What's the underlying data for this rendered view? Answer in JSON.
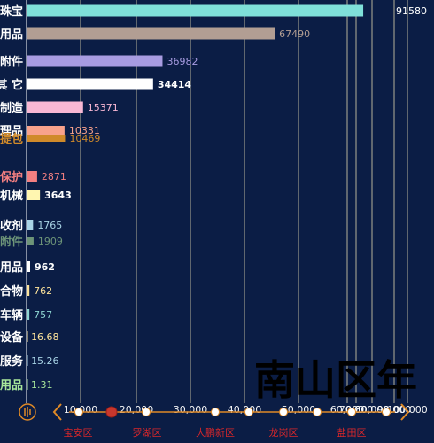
{
  "chart_data": {
    "type": "bar",
    "orientation": "horizontal",
    "categories": [
      "珠宝",
      "用品",
      "附件",
      "其 它",
      "制造",
      "理品",
      "提包",
      "保护",
      "机械",
      "收剂",
      "附件",
      "用品",
      "合物",
      "车辆",
      "设备",
      "服务",
      "用品"
    ],
    "values": [
      91580,
      67490,
      36982,
      34414,
      15371,
      10331,
      10469,
      2871,
      3643,
      1765,
      1909,
      962,
      762,
      757,
      16.68,
      15.26,
      1.31
    ],
    "value_labels": [
      "91580",
      "67490",
      "36982",
      "34414",
      "15371",
      "10331",
      "10469",
      "2871",
      "3643",
      "1765",
      "1909",
      "962",
      "762",
      "757",
      "16.68",
      "15.26",
      "1.31"
    ],
    "colors": [
      "#7fe0d9",
      "#b29e93",
      "#a89ce1",
      "#ffffff",
      "#f9b8d4",
      "#f8a28c",
      "#d08a2a",
      "#f37f81",
      "#fff6b0",
      "#a9d4e6",
      "#6d9478",
      "#ffffff",
      "#fde39b",
      "#8fd7d3",
      "#fde39b",
      "#a9d4e6",
      "#a7e59a"
    ],
    "label_colors": [
      "#ffffff",
      "#ffffff",
      "#ffffff",
      "#ffffff",
      "#ffffff",
      "#ffffff",
      "#d08a2a",
      "#f37f81",
      "#ffffff",
      "#ffffff",
      "#6d9478",
      "#ffffff",
      "#ffffff",
      "#ffffff",
      "#ffffff",
      "#ffffff",
      "#a7e59a"
    ],
    "value_colors": [
      "#ffffff",
      "#b29e93",
      "#a89ce1",
      "#ffffff",
      "#f9b8d4",
      "#f8a28c",
      "#d08a2a",
      "#f37f81",
      "#ffffff",
      "#a9d4e6",
      "#6d9478",
      "#ffffff",
      "#fde39b",
      "#8fd7d3",
      "#fde39b",
      "#a9d4e6",
      "#a7e59a"
    ],
    "x_ticks": [
      "10,000",
      "20,000",
      "30,000",
      "40,000",
      "50,000",
      "60,000",
      "70,000",
      "80,000",
      "90,000",
      "100,000"
    ],
    "xlim": [
      0,
      100000
    ],
    "grid": true,
    "watermark": "南山区年",
    "timeline": {
      "items": [
        "宝安区",
        "罗湖区",
        "大鹏新区",
        "龙岗区",
        "盐田区"
      ],
      "active_index": 1
    },
    "theme": {
      "background": "#0b1d45",
      "grid": "#efe3b6",
      "accent": "#e08a26",
      "timeline_label": "#d9272a"
    }
  }
}
